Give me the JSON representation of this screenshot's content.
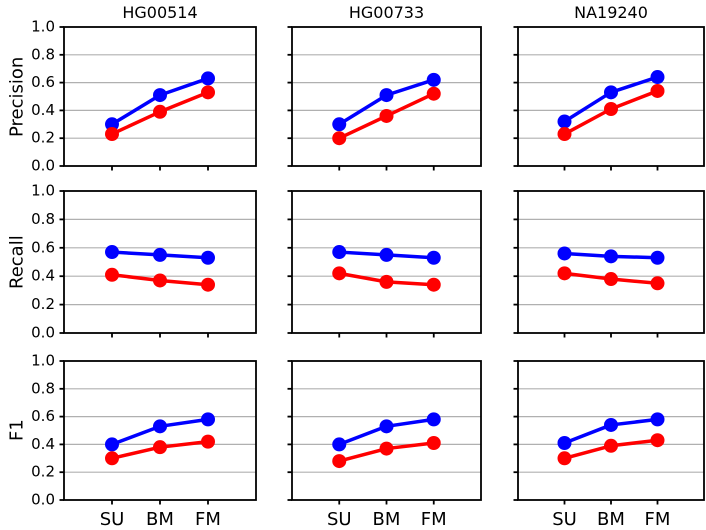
{
  "figure": {
    "background": "#ffffff",
    "columns": [
      "HG00514",
      "HG00733",
      "NA19240"
    ],
    "rows": [
      "Precision",
      "Recall",
      "F1"
    ]
  },
  "colors": {
    "blue_series": "#0000ff",
    "red_series": "#ff0000",
    "grid": "#b0b0b0",
    "spine": "#000000",
    "text": "#000000",
    "background": "#ffffff"
  },
  "chart_data": {
    "type": "line",
    "layout": "3x3 grid of subplots; columns are samples, rows are metrics",
    "columns": [
      "HG00514",
      "HG00733",
      "NA19240"
    ],
    "rows": [
      "Precision",
      "Recall",
      "F1"
    ],
    "categories": [
      "SU",
      "BM",
      "FM"
    ],
    "ylim": [
      0.0,
      1.0
    ],
    "ytick_labels": [
      "0.0",
      "0.2",
      "0.4",
      "0.6",
      "0.8",
      "1.0"
    ],
    "grid": "horizontal gridlines at 0.2 steps",
    "legend": "none",
    "series": [
      {
        "name": "blue",
        "color": "#0000ff"
      },
      {
        "name": "red",
        "color": "#ff0000"
      }
    ],
    "panels": [
      {
        "metric": "Precision",
        "sample": "HG00514",
        "blue": [
          0.3,
          0.51,
          0.63
        ],
        "red": [
          0.23,
          0.39,
          0.53
        ]
      },
      {
        "metric": "Precision",
        "sample": "HG00733",
        "blue": [
          0.3,
          0.51,
          0.62
        ],
        "red": [
          0.2,
          0.36,
          0.52
        ]
      },
      {
        "metric": "Precision",
        "sample": "NA19240",
        "blue": [
          0.32,
          0.53,
          0.64
        ],
        "red": [
          0.23,
          0.41,
          0.54
        ]
      },
      {
        "metric": "Recall",
        "sample": "HG00514",
        "blue": [
          0.57,
          0.55,
          0.53
        ],
        "red": [
          0.41,
          0.37,
          0.34
        ]
      },
      {
        "metric": "Recall",
        "sample": "HG00733",
        "blue": [
          0.57,
          0.55,
          0.53
        ],
        "red": [
          0.42,
          0.36,
          0.34
        ]
      },
      {
        "metric": "Recall",
        "sample": "NA19240",
        "blue": [
          0.56,
          0.54,
          0.53
        ],
        "red": [
          0.42,
          0.38,
          0.35
        ]
      },
      {
        "metric": "F1",
        "sample": "HG00514",
        "blue": [
          0.4,
          0.53,
          0.58
        ],
        "red": [
          0.3,
          0.38,
          0.42
        ]
      },
      {
        "metric": "F1",
        "sample": "HG00733",
        "blue": [
          0.4,
          0.53,
          0.58
        ],
        "red": [
          0.28,
          0.37,
          0.41
        ]
      },
      {
        "metric": "F1",
        "sample": "NA19240",
        "blue": [
          0.41,
          0.54,
          0.58
        ],
        "red": [
          0.3,
          0.39,
          0.43
        ]
      }
    ]
  }
}
